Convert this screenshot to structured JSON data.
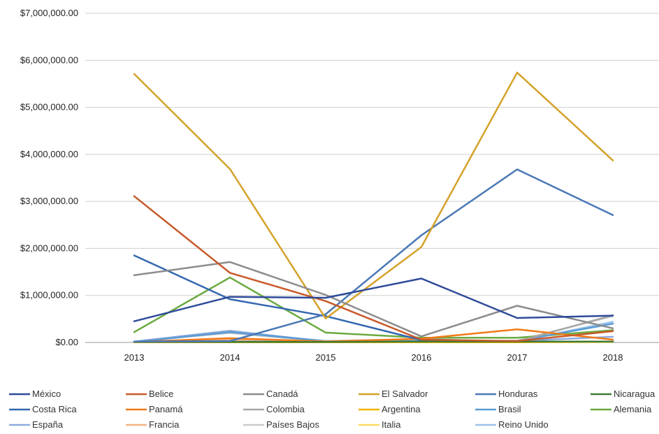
{
  "chart_data": {
    "type": "line",
    "title": "",
    "xlabel": "",
    "ylabel": "",
    "x": [
      "2013",
      "2014",
      "2015",
      "2016",
      "2017",
      "2018"
    ],
    "ylim": [
      0,
      7000000
    ],
    "yticks": [
      0,
      1000000,
      2000000,
      3000000,
      4000000,
      5000000,
      6000000,
      7000000
    ],
    "ytick_labels": [
      "$0.00",
      "$1,000,000.00",
      "$2,000,000.00",
      "$3,000,000.00",
      "$4,000,000.00",
      "$5,000,000.00",
      "$6,000,000.00",
      "$7,000,000.00"
    ],
    "grid": true,
    "legend_position": "bottom",
    "series": [
      {
        "name": "México",
        "color": "#2f4b9a",
        "values": [
          450000,
          970000,
          950000,
          1360000,
          520000,
          570000
        ]
      },
      {
        "name": "Belice",
        "color": "#c85a2a",
        "values": [
          3110000,
          1480000,
          880000,
          60000,
          30000,
          240000
        ]
      },
      {
        "name": "Canadá",
        "color": "#8c8c8c",
        "values": [
          1430000,
          1710000,
          1010000,
          130000,
          780000,
          300000
        ]
      },
      {
        "name": "El Salvador",
        "color": "#d4a22a",
        "values": [
          5710000,
          3690000,
          510000,
          2030000,
          5740000,
          3870000
        ]
      },
      {
        "name": "Honduras",
        "color": "#4a78b5",
        "values": [
          20000,
          30000,
          600000,
          2280000,
          3680000,
          2710000
        ]
      },
      {
        "name": "Nicaragua",
        "color": "#3f7a35",
        "values": [
          10000,
          10000,
          10000,
          20000,
          20000,
          20000
        ]
      },
      {
        "name": "Costa Rica",
        "color": "#3468b0",
        "values": [
          1850000,
          920000,
          560000,
          50000,
          20000,
          20000
        ]
      },
      {
        "name": "Panamá",
        "color": "#f07a1a",
        "values": [
          10000,
          90000,
          20000,
          80000,
          280000,
          60000
        ]
      },
      {
        "name": "Colombia",
        "color": "#a8a8a8",
        "values": [
          20000,
          20000,
          30000,
          70000,
          20000,
          580000
        ]
      },
      {
        "name": "Argentina",
        "color": "#f2b400",
        "values": [
          5000,
          5000,
          5000,
          5000,
          5000,
          10000
        ]
      },
      {
        "name": "Brasil",
        "color": "#5b9bd5",
        "values": [
          10000,
          220000,
          30000,
          30000,
          30000,
          400000
        ]
      },
      {
        "name": "Alemania",
        "color": "#6aaa3f",
        "values": [
          220000,
          1380000,
          210000,
          100000,
          100000,
          260000
        ]
      },
      {
        "name": "España",
        "color": "#8faadc",
        "values": [
          20000,
          250000,
          20000,
          20000,
          30000,
          120000
        ]
      },
      {
        "name": "Francia",
        "color": "#f4b183",
        "values": [
          10000,
          60000,
          10000,
          10000,
          10000,
          20000
        ]
      },
      {
        "name": "Países Bajos",
        "color": "#c9c9c9",
        "values": [
          20000,
          200000,
          20000,
          20000,
          40000,
          560000
        ]
      },
      {
        "name": "Italia",
        "color": "#ffd966",
        "values": [
          5000,
          30000,
          5000,
          5000,
          10000,
          20000
        ]
      },
      {
        "name": "Reino Unido",
        "color": "#9dc3e6",
        "values": [
          10000,
          50000,
          10000,
          10000,
          20000,
          440000
        ]
      }
    ]
  }
}
